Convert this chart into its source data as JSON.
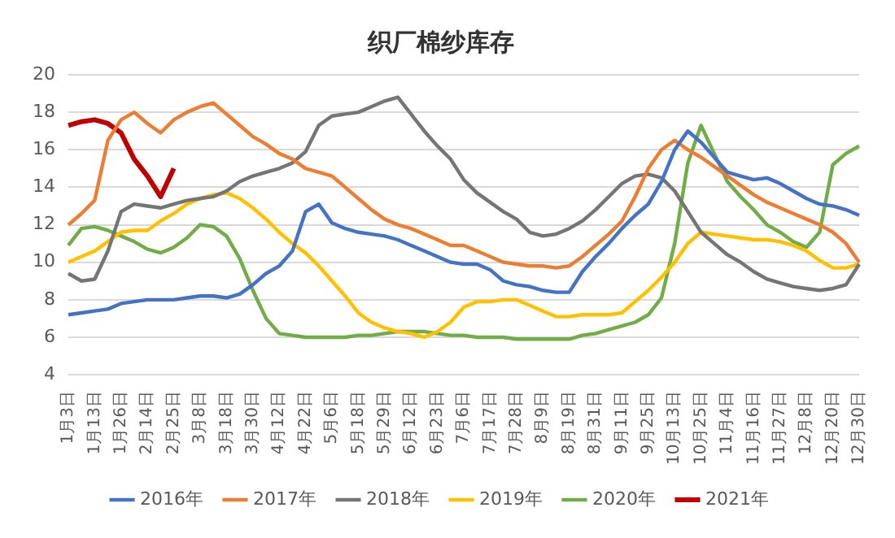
{
  "chart_data": {
    "type": "line",
    "title": "织厂棉纱库存",
    "categories": [
      "1月3日",
      null,
      "1月13日",
      null,
      "1月26日",
      null,
      "2月14日",
      null,
      "2月25日",
      null,
      "3月8日",
      null,
      "3月18日",
      null,
      "3月30日",
      null,
      "4月12日",
      null,
      "4月22日",
      null,
      "5月6日",
      null,
      "5月18日",
      null,
      "5月29日",
      null,
      "6月12日",
      null,
      "6月23日",
      null,
      "7月6日",
      null,
      "7月17日",
      null,
      "7月28日",
      null,
      "8月9日",
      null,
      "8月19日",
      null,
      "8月31日",
      null,
      "9月11日",
      null,
      "9月25日",
      null,
      "10月13日",
      null,
      "10月25日",
      null,
      "11月4日",
      null,
      "11月16日",
      null,
      "11月27日",
      null,
      "12月8日",
      null,
      "12月20日",
      null,
      "12月30日"
    ],
    "series": [
      {
        "name": "2016年",
        "color": "#4472c4",
        "values": [
          7.2,
          7.3,
          7.4,
          7.5,
          7.8,
          7.9,
          8.0,
          8.0,
          8.0,
          8.1,
          8.2,
          8.2,
          8.1,
          8.3,
          8.8,
          9.4,
          9.8,
          10.6,
          12.7,
          13.1,
          12.1,
          11.8,
          11.6,
          11.5,
          11.4,
          11.2,
          10.9,
          10.6,
          10.3,
          10.0,
          9.9,
          9.9,
          9.6,
          9.0,
          8.8,
          8.7,
          8.5,
          8.4,
          8.4,
          9.5,
          10.3,
          11.0,
          11.8,
          12.5,
          13.1,
          14.3,
          16.0,
          17.0,
          16.4,
          15.6,
          14.8,
          14.6,
          14.4,
          14.5,
          14.2,
          13.8,
          13.4,
          13.1,
          13.0,
          12.8,
          12.5
        ]
      },
      {
        "name": "2017年",
        "color": "#ed7d31",
        "values": [
          12.0,
          12.6,
          13.3,
          16.5,
          17.6,
          18.0,
          17.4,
          16.9,
          17.6,
          18.0,
          18.3,
          18.5,
          17.9,
          17.3,
          16.7,
          16.3,
          15.8,
          15.5,
          15.0,
          14.8,
          14.6,
          14.0,
          13.4,
          12.8,
          12.3,
          12.0,
          11.8,
          11.5,
          11.2,
          10.9,
          10.9,
          10.6,
          10.3,
          10.0,
          9.9,
          9.8,
          9.8,
          9.7,
          9.8,
          10.3,
          10.9,
          11.5,
          12.2,
          13.5,
          15.0,
          16.0,
          16.5,
          16.0,
          15.6,
          15.1,
          14.6,
          14.1,
          13.6,
          13.2,
          12.9,
          12.6,
          12.3,
          12.0,
          11.6,
          11.0,
          10.0
        ]
      },
      {
        "name": "2018年",
        "color": "#757575",
        "values": [
          9.4,
          9.0,
          9.1,
          10.6,
          12.7,
          13.1,
          13.0,
          12.9,
          13.1,
          13.3,
          13.4,
          13.5,
          13.8,
          14.3,
          14.6,
          14.8,
          15.0,
          15.3,
          15.9,
          17.3,
          17.8,
          17.9,
          18.0,
          18.3,
          18.6,
          18.8,
          17.9,
          17.0,
          16.2,
          15.5,
          14.4,
          13.7,
          13.2,
          12.7,
          12.3,
          11.6,
          11.4,
          11.5,
          11.8,
          12.2,
          12.8,
          13.5,
          14.2,
          14.6,
          14.7,
          14.5,
          13.8,
          12.7,
          11.6,
          11.0,
          10.4,
          10.0,
          9.5,
          9.1,
          8.9,
          8.7,
          8.6,
          8.5,
          8.6,
          8.8,
          9.9
        ]
      },
      {
        "name": "2019年",
        "color": "#ffc000",
        "values": [
          10.0,
          10.3,
          10.6,
          11.1,
          11.6,
          11.7,
          11.7,
          12.2,
          12.6,
          13.1,
          13.4,
          13.6,
          13.7,
          13.4,
          12.9,
          12.3,
          11.6,
          11.0,
          10.5,
          9.8,
          9.0,
          8.2,
          7.3,
          6.8,
          6.5,
          6.3,
          6.2,
          6.0,
          6.3,
          6.8,
          7.6,
          7.9,
          7.9,
          8.0,
          8.0,
          7.7,
          7.4,
          7.1,
          7.1,
          7.2,
          7.2,
          7.2,
          7.3,
          7.9,
          8.5,
          9.2,
          10.0,
          11.0,
          11.6,
          11.5,
          11.4,
          11.3,
          11.2,
          11.2,
          11.1,
          10.9,
          10.6,
          10.1,
          9.7,
          9.7,
          9.9
        ]
      },
      {
        "name": "2020年",
        "color": "#70ad47",
        "values": [
          10.9,
          11.8,
          11.9,
          11.7,
          11.4,
          11.1,
          10.7,
          10.5,
          10.8,
          11.3,
          12.0,
          11.9,
          11.4,
          10.2,
          8.5,
          7.0,
          6.2,
          6.1,
          6.0,
          6.0,
          6.0,
          6.0,
          6.1,
          6.1,
          6.2,
          6.3,
          6.3,
          6.3,
          6.2,
          6.1,
          6.1,
          6.0,
          6.0,
          6.0,
          5.9,
          5.9,
          5.9,
          5.9,
          5.9,
          6.1,
          6.2,
          6.4,
          6.6,
          6.8,
          7.2,
          8.1,
          11.0,
          15.3,
          17.3,
          15.8,
          14.3,
          13.5,
          12.8,
          12.0,
          11.6,
          11.1,
          10.8,
          11.6,
          15.2,
          15.8,
          16.2
        ]
      },
      {
        "name": "2021年",
        "color": "#c00000",
        "values": [
          17.3,
          17.5,
          17.6,
          17.4,
          16.9,
          15.5,
          14.6,
          13.5,
          15.0,
          null,
          null,
          null,
          null,
          null,
          null,
          null,
          null,
          null,
          null,
          null,
          null,
          null,
          null,
          null,
          null,
          null,
          null,
          null,
          null,
          null,
          null,
          null,
          null,
          null,
          null,
          null,
          null,
          null,
          null,
          null,
          null,
          null,
          null,
          null,
          null,
          null,
          null,
          null,
          null,
          null,
          null,
          null,
          null,
          null,
          null,
          null,
          null,
          null,
          null,
          null,
          null
        ]
      }
    ],
    "ylim": [
      4,
      20
    ],
    "yticks": [
      4,
      6,
      8,
      10,
      12,
      14,
      16,
      18,
      20
    ],
    "grid": "y",
    "legend": "bottom",
    "marker": "none",
    "line_style": "solid"
  }
}
